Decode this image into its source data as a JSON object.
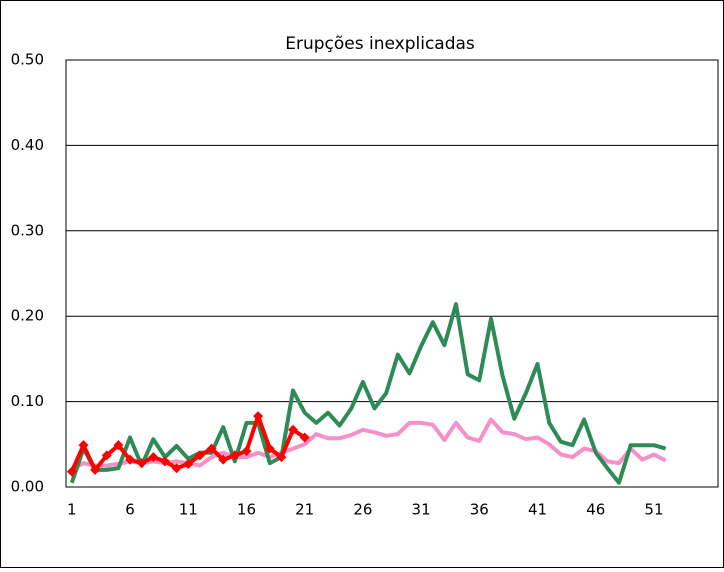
{
  "chart_data": {
    "type": "line",
    "title": "Erupções inexplicadas",
    "categories": [
      1,
      null,
      null,
      null,
      null,
      6,
      null,
      null,
      null,
      null,
      11,
      null,
      null,
      null,
      null,
      16,
      null,
      null,
      null,
      null,
      21,
      null,
      null,
      null,
      null,
      26,
      null,
      null,
      null,
      null,
      31,
      null,
      null,
      null,
      null,
      36,
      null,
      null,
      null,
      null,
      41,
      null,
      null,
      null,
      null,
      46,
      null,
      null,
      null,
      null,
      51,
      null,
      null,
      null,
      null,
      null
    ],
    "ylim": [
      0,
      0.5
    ],
    "yticks": [
      {
        "value": 0,
        "label": "0.00"
      },
      {
        "value": 0.1,
        "label": "0.10"
      },
      {
        "value": 0.2,
        "label": "0.20"
      },
      {
        "value": 0.3,
        "label": "0.30"
      },
      {
        "value": 0.4,
        "label": "0.40"
      },
      {
        "value": 0.5,
        "label": "0.50"
      }
    ],
    "grid": true,
    "series": [
      {
        "color": "#f78fc8",
        "values": [
          0.02,
          0.028,
          0.025,
          0.025,
          0.027,
          0.03,
          0.028,
          0.03,
          0.028,
          0.03,
          0.028,
          0.025,
          0.035,
          0.04,
          0.035,
          0.035,
          0.04,
          0.035,
          0.04,
          0.045,
          0.05,
          0.062,
          0.057,
          0.057,
          0.061,
          0.067,
          0.064,
          0.06,
          0.062,
          0.075,
          0.075,
          0.073,
          0.055,
          0.075,
          0.058,
          0.054,
          0.079,
          0.064,
          0.062,
          0.056,
          0.058,
          0.05,
          0.038,
          0.035,
          0.045,
          0.042,
          0.03,
          0.028,
          0.045,
          0.032,
          0.038,
          0.031,
          null,
          null,
          null,
          null
        ]
      },
      {
        "color": "#2e8b57",
        "values": [
          0.005,
          0.045,
          0.02,
          0.02,
          0.022,
          0.058,
          0.025,
          0.056,
          0.035,
          0.048,
          0.033,
          0.04,
          0.04,
          0.07,
          0.03,
          0.075,
          0.075,
          0.028,
          0.035,
          0.113,
          0.087,
          0.075,
          0.087,
          0.072,
          0.092,
          0.123,
          0.092,
          0.11,
          0.155,
          0.133,
          0.165,
          0.193,
          0.166,
          0.214,
          0.132,
          0.125,
          0.197,
          0.13,
          0.08,
          0.11,
          0.144,
          0.075,
          0.053,
          0.049,
          0.079,
          0.04,
          0.022,
          0.005,
          0.049,
          0.049,
          0.049,
          0.045,
          null,
          null,
          null,
          null
        ]
      },
      {
        "color": "#ff0000",
        "marker": "diamond",
        "values": [
          0.018,
          0.049,
          0.02,
          0.037,
          0.049,
          0.032,
          0.028,
          0.035,
          0.03,
          0.022,
          0.027,
          0.037,
          0.045,
          0.032,
          0.037,
          0.042,
          0.083,
          0.045,
          0.035,
          0.067,
          0.058,
          null,
          null,
          null,
          null,
          null,
          null,
          null,
          null,
          null,
          null,
          null,
          null,
          null,
          null,
          null,
          null,
          null,
          null,
          null,
          null,
          null,
          null,
          null,
          null,
          null,
          null,
          null,
          null,
          null,
          null,
          null,
          null,
          null,
          null,
          null
        ]
      }
    ]
  }
}
